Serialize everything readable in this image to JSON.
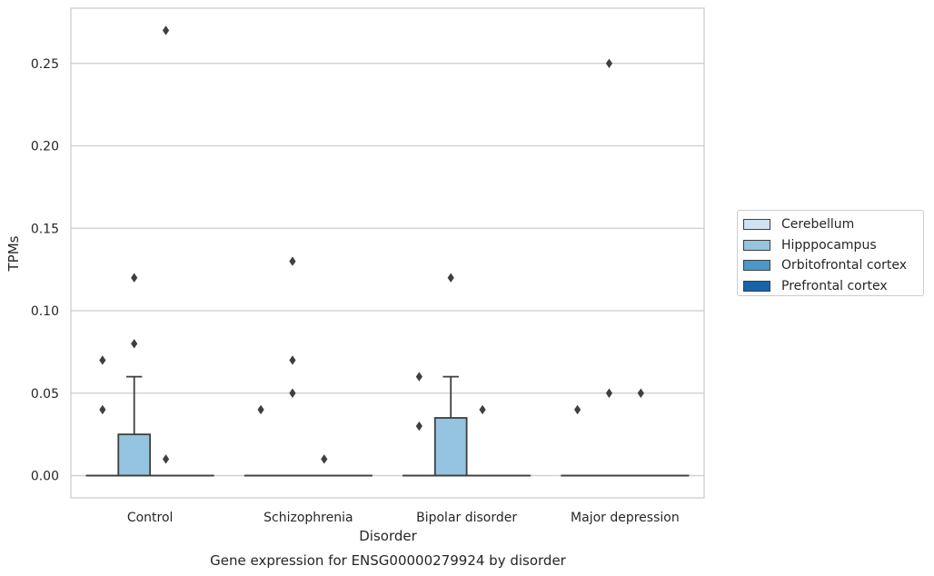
{
  "chart_data": {
    "type": "box",
    "title": "Gene expression for ENSG00000279924 by disorder",
    "xlabel": "Disorder",
    "ylabel": "TPMs",
    "ylim": [
      -0.0135,
      0.2835
    ],
    "yticks": [
      "0.00",
      "0.05",
      "0.10",
      "0.15",
      "0.20",
      "0.25"
    ],
    "categories": [
      "Control",
      "Schizophrenia",
      "Bipolar disorder",
      "Major depression"
    ],
    "grid": true,
    "legend_position": "right",
    "series": [
      {
        "name": "Cerebellum",
        "color": "#d0e1f2",
        "boxes": [
          {
            "q1": 0,
            "median": 0,
            "q3": 0,
            "whisker_low": 0,
            "whisker_high": 0,
            "outliers": [
              0.04,
              0.07
            ]
          },
          {
            "q1": 0,
            "median": 0,
            "q3": 0,
            "whisker_low": 0,
            "whisker_high": 0,
            "outliers": [
              0.04
            ]
          },
          {
            "q1": 0,
            "median": 0,
            "q3": 0,
            "whisker_low": 0,
            "whisker_high": 0,
            "outliers": [
              0.03,
              0.06
            ]
          },
          {
            "q1": 0,
            "median": 0,
            "q3": 0,
            "whisker_low": 0,
            "whisker_high": 0,
            "outliers": [
              0.04
            ]
          }
        ]
      },
      {
        "name": "Hipppocampus",
        "color": "#94c4df",
        "boxes": [
          {
            "q1": 0,
            "median": 0,
            "q3": 0.025,
            "whisker_low": 0,
            "whisker_high": 0.06,
            "outliers": [
              0.08,
              0.12
            ]
          },
          {
            "q1": 0,
            "median": 0,
            "q3": 0,
            "whisker_low": 0,
            "whisker_high": 0,
            "outliers": [
              0.05,
              0.07,
              0.13
            ]
          },
          {
            "q1": 0,
            "median": 0,
            "q3": 0.035,
            "whisker_low": 0,
            "whisker_high": 0.06,
            "outliers": [
              0.12
            ]
          },
          {
            "q1": 0,
            "median": 0,
            "q3": 0,
            "whisker_low": 0,
            "whisker_high": 0,
            "outliers": [
              0.05,
              0.25
            ]
          }
        ]
      },
      {
        "name": "Orbitofrontal cortex",
        "color": "#4a98c9",
        "boxes": [
          {
            "q1": 0,
            "median": 0,
            "q3": 0,
            "whisker_low": 0,
            "whisker_high": 0,
            "outliers": [
              0.01,
              0.27
            ]
          },
          {
            "q1": 0,
            "median": 0,
            "q3": 0,
            "whisker_low": 0,
            "whisker_high": 0,
            "outliers": [
              0.01
            ]
          },
          {
            "q1": 0,
            "median": 0,
            "q3": 0,
            "whisker_low": 0,
            "whisker_high": 0,
            "outliers": [
              0.04
            ]
          },
          {
            "q1": 0,
            "median": 0,
            "q3": 0,
            "whisker_low": 0,
            "whisker_high": 0,
            "outliers": [
              0.05
            ]
          }
        ]
      },
      {
        "name": "Prefrontal cortex",
        "color": "#1764ab",
        "boxes": [
          {
            "q1": 0,
            "median": 0,
            "q3": 0,
            "whisker_low": 0,
            "whisker_high": 0,
            "outliers": []
          },
          {
            "q1": 0,
            "median": 0,
            "q3": 0,
            "whisker_low": 0,
            "whisker_high": 0,
            "outliers": []
          },
          {
            "q1": 0,
            "median": 0,
            "q3": 0,
            "whisker_low": 0,
            "whisker_high": 0,
            "outliers": []
          },
          {
            "q1": 0,
            "median": 0,
            "q3": 0,
            "whisker_low": 0,
            "whisker_high": 0,
            "outliers": []
          }
        ]
      }
    ]
  }
}
